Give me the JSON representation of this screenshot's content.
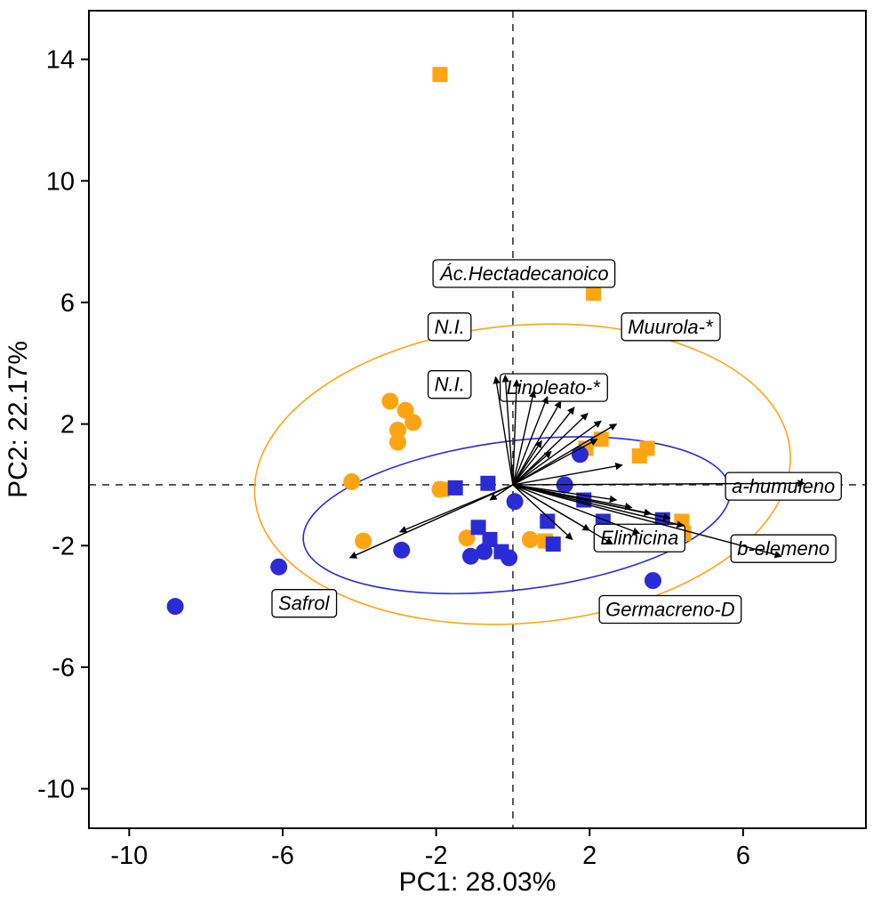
{
  "chart_data": {
    "type": "scatter",
    "subtype": "pca_biplot",
    "title": "",
    "xlabel": "PC1:  28.03%",
    "ylabel": "PC2:  22.17%",
    "xlim": [
      -11.05,
      9.2
    ],
    "ylim": [
      -11.3,
      15.6
    ],
    "xticks": [
      -10,
      -6,
      -2,
      2,
      6
    ],
    "yticks": [
      -10,
      -6,
      -2,
      2,
      6,
      10,
      14
    ],
    "grid": false,
    "zero_lines": "dashed",
    "legend": "none",
    "colors": {
      "orange": "#FFA512",
      "blue": "#2B2BD5",
      "arrow": "#000000",
      "dashed": "#333333",
      "panel_border": "#000000",
      "label_box_fill": "#FFFFFF",
      "label_box_stroke": "#000000",
      "background": "#FFFFFF"
    },
    "series": [
      {
        "name": "orange-circles",
        "group": "orange",
        "marker": "circle",
        "points": [
          [
            -4.2,
            0.1
          ],
          [
            -3.2,
            2.75
          ],
          [
            -2.8,
            2.45
          ],
          [
            -3.0,
            1.8
          ],
          [
            -2.6,
            2.05
          ],
          [
            -3.0,
            1.4
          ],
          [
            -3.9,
            -1.85
          ],
          [
            -1.9,
            -0.15
          ],
          [
            -1.2,
            -1.75
          ],
          [
            0.45,
            -1.8
          ]
        ]
      },
      {
        "name": "orange-squares",
        "group": "orange",
        "marker": "square",
        "points": [
          [
            -1.9,
            13.5
          ],
          [
            2.1,
            6.3
          ],
          [
            2.3,
            1.5
          ],
          [
            1.9,
            1.2
          ],
          [
            3.5,
            1.2
          ],
          [
            3.3,
            0.95
          ],
          [
            4.4,
            -1.2
          ],
          [
            4.45,
            -1.6
          ],
          [
            -1.85,
            -0.15
          ],
          [
            0.85,
            -1.85
          ]
        ]
      },
      {
        "name": "blue-circles",
        "group": "blue",
        "marker": "circle",
        "points": [
          [
            -8.8,
            -4.0
          ],
          [
            -6.1,
            -2.7
          ],
          [
            -2.9,
            -2.15
          ],
          [
            -1.1,
            -2.35
          ],
          [
            -0.1,
            -2.4
          ],
          [
            0.05,
            -0.55
          ],
          [
            1.35,
            0.0
          ],
          [
            1.75,
            1.0
          ],
          [
            3.65,
            -3.15
          ],
          [
            -0.75,
            -2.2
          ]
        ]
      },
      {
        "name": "blue-squares",
        "group": "blue",
        "marker": "square",
        "points": [
          [
            -1.5,
            -0.1
          ],
          [
            -0.65,
            0.05
          ],
          [
            -0.9,
            -1.4
          ],
          [
            -0.6,
            -1.8
          ],
          [
            -0.3,
            -2.2
          ],
          [
            0.9,
            -1.2
          ],
          [
            1.05,
            -1.95
          ],
          [
            2.35,
            -1.2
          ],
          [
            3.9,
            -1.15
          ],
          [
            4.3,
            -1.7
          ],
          [
            1.85,
            -0.5
          ]
        ]
      }
    ],
    "ellipses": [
      {
        "group": "orange",
        "cx": 0.25,
        "cy": 0.35,
        "rx": 7.0,
        "ry": 4.9,
        "angle_deg": 5
      },
      {
        "group": "blue",
        "cx": 0.1,
        "cy": -1.0,
        "rx": 5.6,
        "ry": 2.45,
        "angle_deg": 7
      }
    ],
    "loadings": {
      "origin": [
        0,
        0
      ],
      "arrows": [
        [
          -0.45,
          3.55
        ],
        [
          -0.2,
          3.6
        ],
        [
          0.1,
          3.45
        ],
        [
          0.55,
          3.1
        ],
        [
          0.9,
          2.9
        ],
        [
          1.25,
          2.75
        ],
        [
          1.6,
          2.55
        ],
        [
          1.95,
          2.35
        ],
        [
          2.3,
          2.1
        ],
        [
          2.7,
          2.0
        ],
        [
          2.2,
          1.5
        ],
        [
          1.0,
          1.1
        ],
        [
          0.75,
          1.45
        ],
        [
          2.85,
          0.65
        ],
        [
          7.6,
          0.05
        ],
        [
          2.7,
          -0.5
        ],
        [
          3.1,
          -0.75
        ],
        [
          3.6,
          -0.95
        ],
        [
          4.1,
          -1.1
        ],
        [
          4.45,
          -1.35
        ],
        [
          7.0,
          -2.35
        ],
        [
          3.3,
          -1.6
        ],
        [
          2.0,
          -1.5
        ],
        [
          1.55,
          -1.8
        ],
        [
          2.6,
          -1.95
        ],
        [
          -0.6,
          -0.5
        ],
        [
          -2.95,
          -1.55
        ],
        [
          -4.25,
          -2.4
        ]
      ],
      "labels": [
        {
          "text": "Ác.Hectadecanoico",
          "x": 0.3,
          "y": 6.95
        },
        {
          "text": "N.I.",
          "x": -1.65,
          "y": 5.2
        },
        {
          "text": "Muurola-*",
          "x": 4.1,
          "y": 5.2
        },
        {
          "text": "N.I.",
          "x": -1.65,
          "y": 3.3
        },
        {
          "text": "Linoleato-*",
          "x": 1.05,
          "y": 3.2
        },
        {
          "text": "a-humuleno",
          "x": 7.05,
          "y": -0.05
        },
        {
          "text": "Elimicina",
          "x": 3.3,
          "y": -1.75
        },
        {
          "text": "b-elemeno",
          "x": 7.05,
          "y": -2.1
        },
        {
          "text": "Safrol",
          "x": -5.45,
          "y": -3.9
        },
        {
          "text": "Germacreno-D",
          "x": 4.1,
          "y": -4.1
        }
      ]
    }
  }
}
